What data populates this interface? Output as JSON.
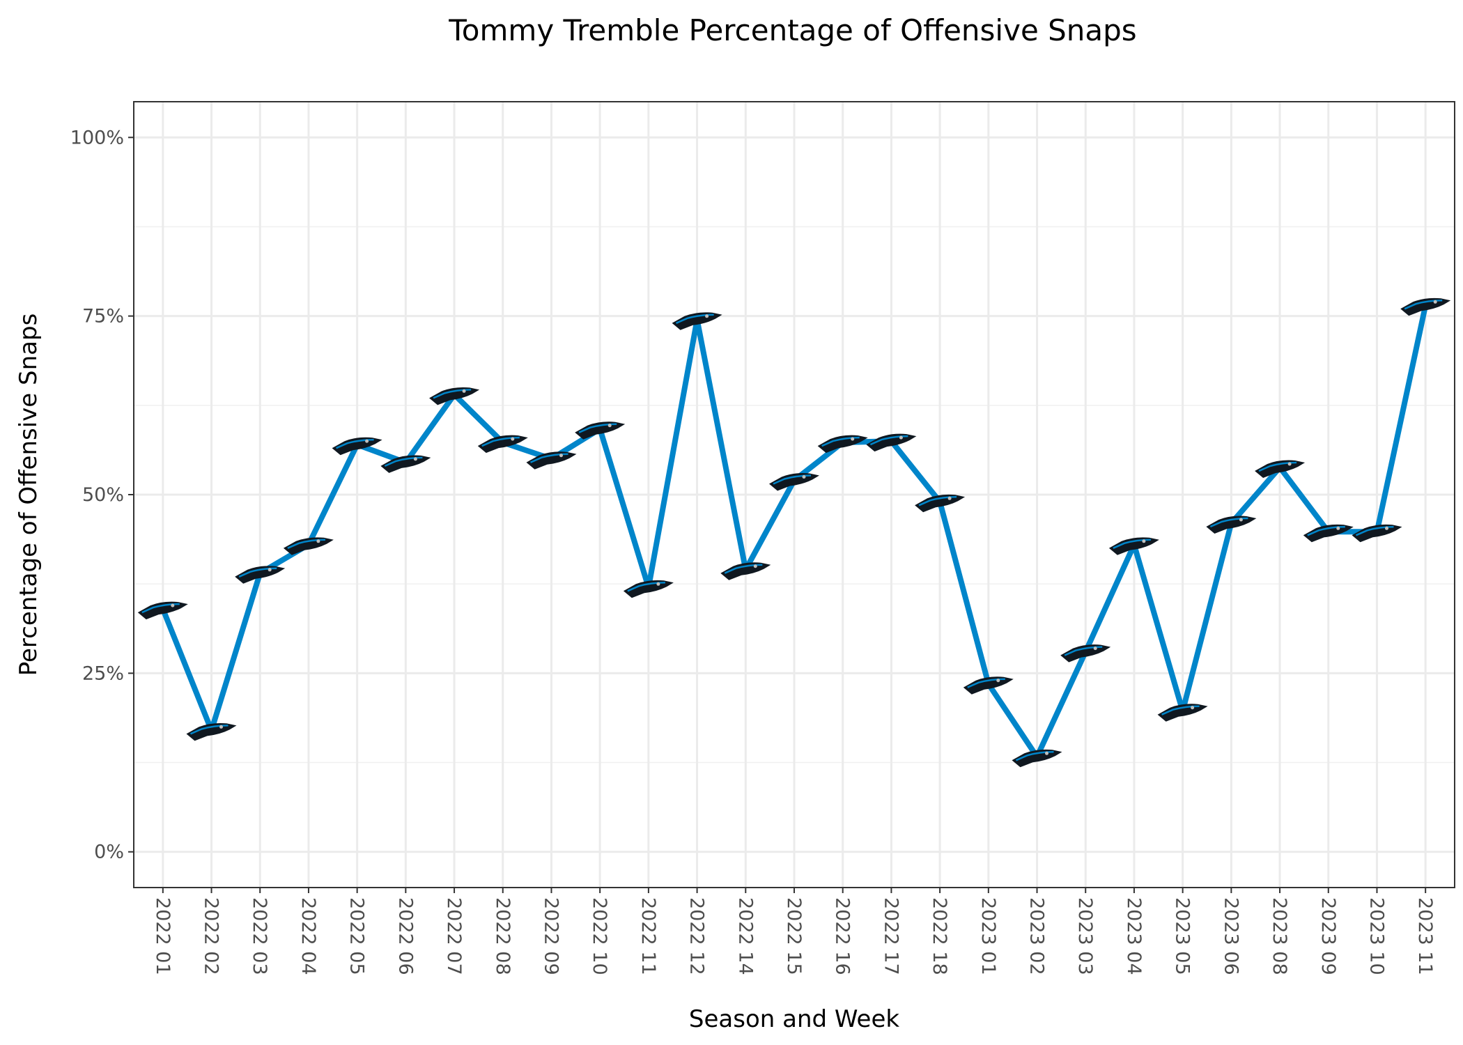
{
  "chart_data": {
    "type": "line",
    "title": "Tommy Tremble Percentage of Offensive Snaps",
    "xlabel": "Season and Week",
    "ylabel": "Percentage of Offensive Snaps",
    "ylim": [
      -0.05,
      1.05
    ],
    "yticks": [
      0,
      0.25,
      0.5,
      0.75,
      1.0
    ],
    "ytick_labels": [
      "0%",
      "25%",
      "50%",
      "75%",
      "100%"
    ],
    "grid": true,
    "line_color": "#0085CA",
    "marker_icon": "carolina-panthers-logo-icon",
    "categories": [
      "2022 01",
      "2022 02",
      "2022 03",
      "2022 04",
      "2022 05",
      "2022 06",
      "2022 07",
      "2022 08",
      "2022 09",
      "2022 10",
      "2022 11",
      "2022 12",
      "2022 14",
      "2022 15",
      "2022 16",
      "2022 17",
      "2022 18",
      "2023 01",
      "2023 02",
      "2023 03",
      "2023 04",
      "2023 05",
      "2023 06",
      "2023 08",
      "2023 09",
      "2023 10",
      "2023 11"
    ],
    "series": [
      {
        "values": [
          0.34,
          0.17,
          0.39,
          0.43,
          0.57,
          0.545,
          0.64,
          0.573,
          0.55,
          0.592,
          0.37,
          0.745,
          0.395,
          0.52,
          0.573,
          0.575,
          0.49,
          0.235,
          0.133,
          0.28,
          0.43,
          0.197,
          0.46,
          0.538,
          0.448,
          0.448,
          0.765
        ]
      }
    ]
  }
}
